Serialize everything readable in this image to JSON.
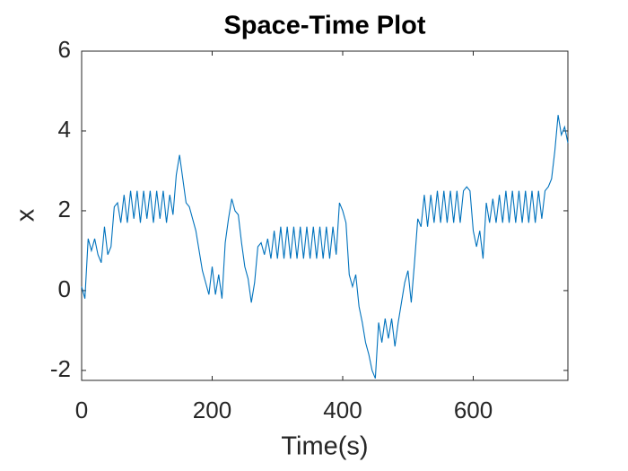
{
  "chart_data": {
    "type": "line",
    "title": "Space-Time Plot",
    "x_label": "Time(s)",
    "y_label": "x",
    "x": [
      0,
      5,
      10,
      15,
      20,
      25,
      30,
      35,
      40,
      45,
      50,
      55,
      60,
      65,
      70,
      75,
      80,
      85,
      90,
      95,
      100,
      105,
      110,
      115,
      120,
      125,
      130,
      135,
      140,
      145,
      150,
      155,
      160,
      165,
      170,
      175,
      180,
      185,
      190,
      195,
      200,
      205,
      210,
      215,
      220,
      225,
      230,
      235,
      240,
      245,
      250,
      255,
      260,
      265,
      270,
      275,
      280,
      285,
      290,
      295,
      300,
      305,
      310,
      315,
      320,
      325,
      330,
      335,
      340,
      345,
      350,
      355,
      360,
      365,
      370,
      375,
      380,
      385,
      390,
      395,
      400,
      405,
      410,
      415,
      420,
      425,
      430,
      435,
      440,
      445,
      450,
      455,
      460,
      465,
      470,
      475,
      480,
      485,
      490,
      495,
      500,
      505,
      510,
      515,
      520,
      525,
      530,
      535,
      540,
      545,
      550,
      555,
      560,
      565,
      570,
      575,
      580,
      585,
      590,
      595,
      600,
      605,
      610,
      615,
      620,
      625,
      630,
      635,
      640,
      645,
      650,
      655,
      660,
      665,
      670,
      675,
      680,
      685,
      690,
      695,
      700,
      705,
      710,
      715,
      720,
      725,
      730,
      735,
      740,
      745
    ],
    "series": [
      {
        "name": "x",
        "color": "#0072BD",
        "values": [
          0.1,
          -0.2,
          1.3,
          1.0,
          1.3,
          0.9,
          0.7,
          1.6,
          0.9,
          1.1,
          2.1,
          2.2,
          1.7,
          2.4,
          1.7,
          2.5,
          1.8,
          2.5,
          1.7,
          2.5,
          1.8,
          2.5,
          1.7,
          2.5,
          1.8,
          2.5,
          1.7,
          2.4,
          1.9,
          2.9,
          3.4,
          2.8,
          2.2,
          2.1,
          1.8,
          1.5,
          1.0,
          0.5,
          0.2,
          -0.1,
          0.6,
          -0.1,
          0.4,
          -0.2,
          1.2,
          1.8,
          2.3,
          2.0,
          1.9,
          1.2,
          0.6,
          0.3,
          -0.3,
          0.2,
          1.1,
          1.2,
          0.9,
          1.3,
          0.8,
          1.5,
          0.8,
          1.6,
          0.8,
          1.6,
          0.8,
          1.6,
          0.8,
          1.6,
          0.8,
          1.6,
          0.8,
          1.6,
          0.8,
          1.6,
          0.8,
          1.6,
          0.8,
          1.6,
          0.9,
          2.2,
          2.0,
          1.7,
          0.4,
          0.1,
          0.4,
          -0.4,
          -0.8,
          -1.3,
          -1.6,
          -2.0,
          -2.2,
          -0.8,
          -1.3,
          -0.7,
          -1.2,
          -0.7,
          -1.4,
          -0.8,
          -0.3,
          0.2,
          0.5,
          -0.3,
          0.7,
          1.8,
          1.6,
          2.4,
          1.6,
          2.4,
          1.7,
          2.5,
          1.7,
          2.5,
          1.7,
          2.5,
          1.7,
          2.5,
          1.7,
          2.5,
          2.6,
          2.5,
          1.5,
          1.1,
          1.5,
          0.8,
          2.2,
          1.7,
          2.3,
          1.7,
          2.4,
          1.7,
          2.5,
          1.7,
          2.5,
          1.7,
          2.5,
          1.7,
          2.5,
          1.7,
          2.5,
          1.7,
          2.5,
          1.8,
          2.5,
          2.6,
          2.8,
          3.5,
          4.4,
          3.9,
          4.1,
          3.7
        ]
      }
    ],
    "xlim": [
      0,
      745
    ],
    "xticks": [
      0,
      200,
      400,
      600
    ],
    "ylim": [
      -2.25,
      6
    ],
    "yticks": [
      -2,
      0,
      2,
      4,
      6
    ],
    "grid": false
  }
}
